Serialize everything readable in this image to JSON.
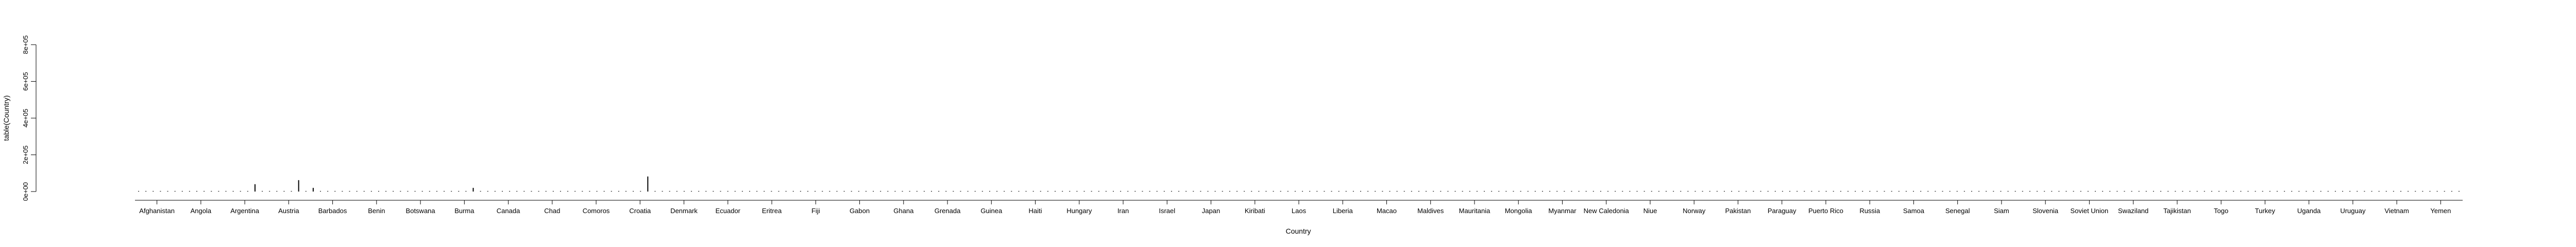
{
  "chart_data": {
    "type": "bar",
    "xlabel": "Country",
    "ylabel": "table(Country)",
    "ylim": [
      0,
      600000
    ],
    "yticks": [
      {
        "value": 0,
        "label": "0e+00"
      },
      {
        "value": 200000,
        "label": "2e+05"
      },
      {
        "value": 400000,
        "label": "4e+05"
      },
      {
        "value": 600000,
        "label": "6e+05"
      },
      {
        "value": 800000,
        "label": "8e+05"
      }
    ],
    "x_tick_labels": [
      "Afghanistan",
      "Angola",
      "Argentina",
      "Austria",
      "Barbados",
      "Benin",
      "Botswana",
      "Burma",
      "Canada",
      "Chad",
      "Comoros",
      "Croatia",
      "Denmark",
      "Ecuador",
      "Eritrea",
      "Fiji",
      "Gabon",
      "Ghana",
      "Grenada",
      "Guinea",
      "Haiti",
      "Hungary",
      "Iran",
      "Israel",
      "Japan",
      "Kiribati",
      "Laos",
      "Liberia",
      "Macao",
      "Maldives",
      "Mauritania",
      "Mongolia",
      "Myanmar",
      "New Caledonia",
      "Niue",
      "Norway",
      "Pakistan",
      "Paraguay",
      "Puerto Rico",
      "Russia",
      "Samoa",
      "Senegal",
      "Siam",
      "Slovenia",
      "Soviet Union",
      "Swaziland",
      "Tajikistan",
      "Togo",
      "Turkey",
      "Uganda",
      "Uruguay",
      "Vietnam",
      "Yemen"
    ],
    "values": [
      3000,
      3000,
      3000,
      3000,
      3000,
      3000,
      3000,
      3000,
      3000,
      3000,
      3000,
      3000,
      3000,
      3000,
      3000,
      3000,
      40000,
      3000,
      3000,
      3000,
      3000,
      3000,
      62000,
      3000,
      20000,
      3000,
      3000,
      3000,
      3000,
      3000,
      3000,
      3000,
      3000,
      3000,
      3000,
      3000,
      3000,
      3000,
      3000,
      3000,
      3000,
      3000,
      3000,
      3000,
      3000,
      3000,
      20000,
      3000,
      3000,
      3000,
      3000,
      3000,
      3000,
      3000,
      3000,
      3000,
      3000,
      3000,
      3000,
      3000,
      3000,
      3000,
      3000,
      3000,
      3000,
      3000,
      3000,
      3000,
      3000,
      3000,
      82000,
      3000,
      3000,
      3000,
      3000,
      3000,
      3000,
      3000,
      3000,
      3000,
      3000,
      3000,
      3000,
      3000,
      3000,
      3000,
      3000,
      3000,
      3000,
      3000,
      3000,
      3000,
      3000,
      3000,
      3000,
      3000,
      3000,
      3000,
      3000,
      3000,
      3000,
      3000,
      3000,
      3000,
      3000,
      3000,
      3000,
      3000,
      3000,
      3000,
      3000,
      3000,
      3000,
      3000,
      3000,
      3000,
      3000,
      3000,
      3000,
      3000,
      3000,
      3000,
      3000,
      3000,
      3000,
      3000,
      3000,
      3000,
      3000,
      3000,
      3000,
      3000,
      3000,
      3000,
      3000,
      3000,
      3000,
      3000,
      3000,
      3000,
      3000,
      3000,
      3000,
      3000,
      3000,
      3000,
      3000,
      3000,
      3000,
      3000,
      3000,
      3000,
      3000,
      3000,
      3000,
      3000,
      3000,
      3000,
      3000,
      3000,
      3000,
      3000,
      3000,
      3000,
      3000,
      3000,
      3000,
      3000,
      3000,
      3000,
      3000,
      3000,
      3000,
      3000,
      3000,
      3000,
      3000,
      3000,
      3000,
      3000,
      3000,
      3000,
      3000,
      3000,
      3000,
      3000,
      3000,
      3000,
      3000,
      3000,
      3000,
      3000,
      3000,
      3000,
      3000,
      3000,
      3000,
      3000,
      3000,
      3000,
      3000,
      3000,
      3000,
      3000,
      3000,
      3000,
      3000,
      3000,
      3000,
      3000,
      3000,
      3000,
      3000,
      3000,
      3000,
      3000,
      3000,
      3000,
      3000,
      3000,
      3000,
      3000,
      3000,
      3000,
      3000,
      3000,
      3000,
      3000,
      3000,
      3000,
      3000,
      3000,
      3000,
      3000,
      3000,
      3000,
      3000,
      3000,
      3000,
      3000,
      3000,
      3000,
      3000,
      3000,
      3000,
      3000,
      3000,
      3000,
      3000,
      3000,
      3000,
      3000,
      3000,
      3000,
      3000,
      3000,
      3000,
      3000,
      3000,
      3000,
      3000,
      3000,
      3000,
      3000,
      3000,
      3000,
      3000,
      3000,
      3000,
      3000,
      3000,
      3000,
      3000,
      3000,
      3000,
      3000,
      3000,
      3000,
      3000,
      3000,
      3000,
      3000,
      3000,
      3000,
      3000,
      3000,
      3000,
      3000,
      3000,
      3000,
      3000,
      3000,
      3000,
      3000,
      3000,
      3000,
      3000,
      3000,
      3000,
      3000,
      3000,
      3000,
      3000,
      3000,
      3000,
      3000,
      3000,
      3000,
      3000,
      3000,
      3000,
      3000,
      3000,
      3000,
      3000,
      3000,
      3000,
      3000,
      3000,
      3000
    ],
    "bar_color": "#000000",
    "grid": false,
    "legend": "none"
  }
}
